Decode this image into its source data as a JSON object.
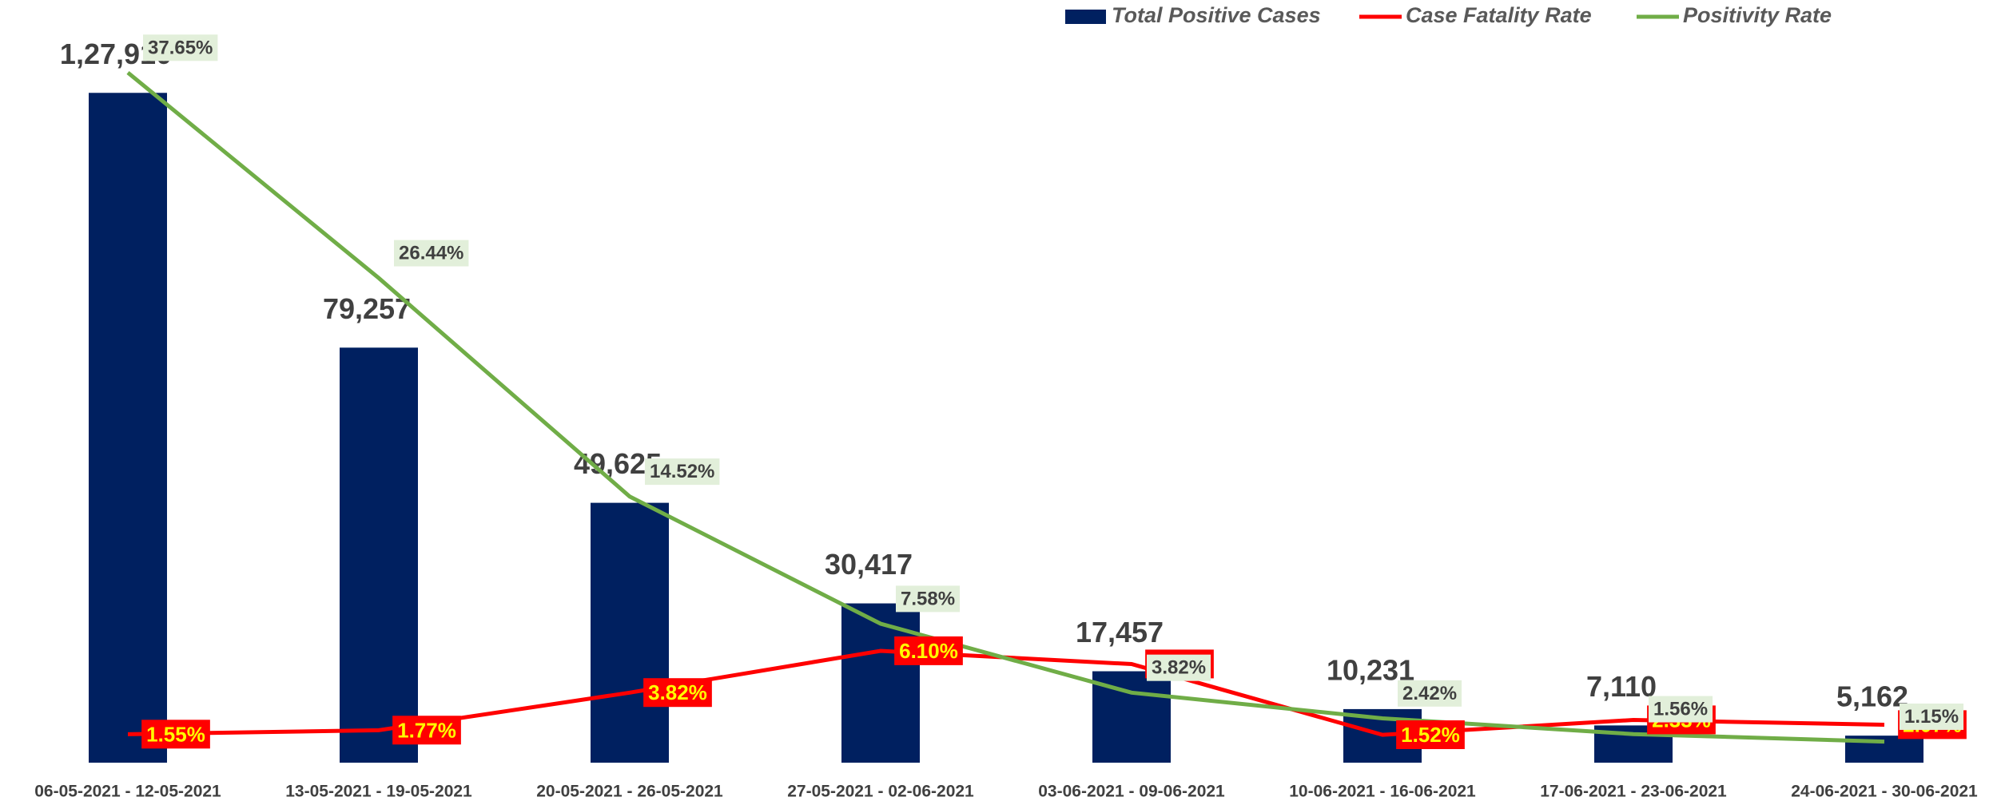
{
  "chart_data": {
    "type": "bar-line",
    "categories": [
      "06-05-2021 - 12-05-2021",
      "13-05-2021 - 19-05-2021",
      "20-05-2021 - 26-05-2021",
      "27-05-2021 - 02-06-2021",
      "03-06-2021 - 09-06-2021",
      "10-06-2021 - 16-06-2021",
      "17-06-2021 - 23-06-2021",
      "24-06-2021 - 30-06-2021"
    ],
    "ylim": [
      0,
      140000
    ],
    "y2lim": [
      0,
      40
    ],
    "series": [
      {
        "name": "Total Positive Cases",
        "type": "bar",
        "color": "#002060",
        "values": [
          127910,
          79257,
          49625,
          30417,
          17457,
          10231,
          7110,
          5162
        ],
        "value_labels": [
          "1,27,910",
          "79,257",
          "49,625",
          "30,417",
          "17,457",
          "10,231",
          "7,110",
          "5,162"
        ]
      },
      {
        "name": "Case Fatality Rate",
        "type": "line",
        "axis": "y2",
        "color": "#ff0000",
        "values": [
          1.55,
          1.77,
          3.82,
          6.1,
          5.38,
          1.52,
          2.33,
          2.07
        ],
        "value_labels": [
          "1.55%",
          "1.77%",
          "3.82%",
          "6.10%",
          "5.38%",
          "1.52%",
          "2.33%",
          "2.07%"
        ]
      },
      {
        "name": "Positivity Rate",
        "type": "line",
        "axis": "y2",
        "color": "#70ad47",
        "values": [
          37.65,
          26.44,
          14.52,
          7.58,
          3.82,
          2.42,
          1.56,
          1.15
        ],
        "value_labels": [
          "37.65%",
          "26.44%",
          "14.52%",
          "7.58%",
          "3.82%",
          "2.42%",
          "1.56%",
          "1.15%"
        ]
      }
    ]
  }
}
